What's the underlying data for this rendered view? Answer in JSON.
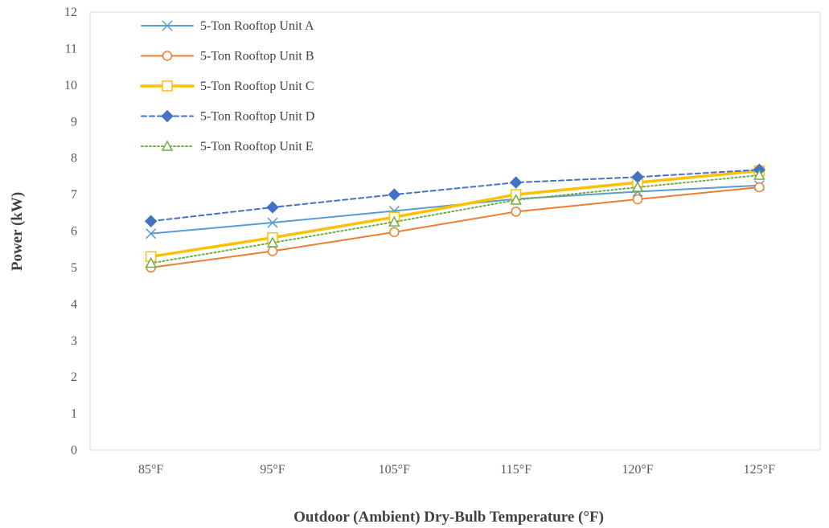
{
  "chart_data": {
    "type": "line",
    "title": "",
    "xlabel": "Outdoor (Ambient) Dry-Bulb Temperature (°F)",
    "ylabel": "Power (kW)",
    "categories": [
      "85°F",
      "95°F",
      "105°F",
      "115°F",
      "120°F",
      "125°F"
    ],
    "ylim": [
      0,
      12
    ],
    "yticks": [
      0,
      1,
      2,
      3,
      4,
      5,
      6,
      7,
      8,
      9,
      10,
      11,
      12
    ],
    "grid": false,
    "legend_position": "top-left",
    "series": [
      {
        "name": "5-Ton Rooftop Unit A",
        "values": [
          5.93,
          6.23,
          6.55,
          6.88,
          7.08,
          7.25
        ],
        "color": "#5B9BD5",
        "marker": "x",
        "dash": "solid",
        "width": 2
      },
      {
        "name": "5-Ton Rooftop Unit B",
        "values": [
          5.0,
          5.45,
          5.97,
          6.53,
          6.87,
          7.2
        ],
        "color": "#ED7D31",
        "marker": "circle-open",
        "dash": "solid",
        "width": 2
      },
      {
        "name": "5-Ton Rooftop Unit C",
        "values": [
          5.3,
          5.82,
          6.38,
          7.0,
          7.33,
          7.65
        ],
        "color": "#FFC000",
        "marker": "square-open",
        "dash": "solid",
        "width": 3.5
      },
      {
        "name": "5-Ton Rooftop Unit D",
        "values": [
          6.27,
          6.65,
          7.0,
          7.33,
          7.48,
          7.68
        ],
        "color": "#4472C4",
        "marker": "diamond-filled",
        "dash": "dashed",
        "width": 2
      },
      {
        "name": "5-Ton Rooftop Unit E",
        "values": [
          5.12,
          5.68,
          6.25,
          6.85,
          7.2,
          7.53
        ],
        "color": "#70AD47",
        "marker": "triangle-open",
        "dash": "dotted",
        "width": 2
      }
    ]
  }
}
